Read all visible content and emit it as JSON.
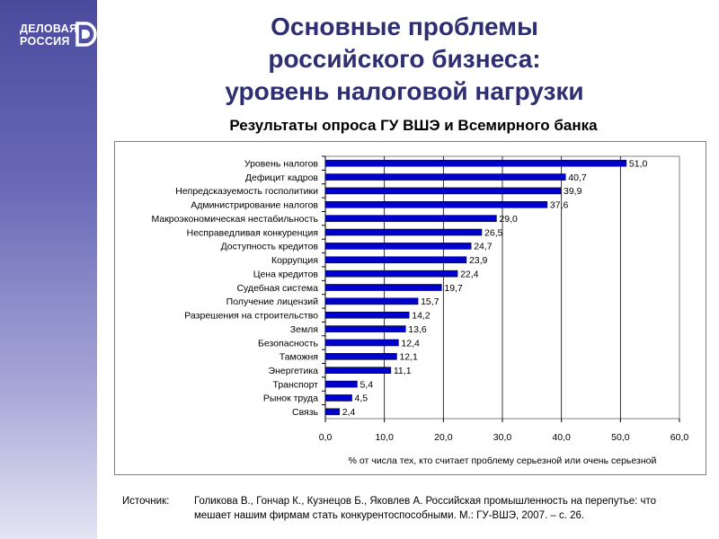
{
  "logo": {
    "line1": "ДЕЛОВАЯ",
    "line2": "РОССИЯ"
  },
  "title": {
    "line1": "Основные проблемы",
    "line2": "российского бизнеса:",
    "line3": "уровень налоговой нагрузки"
  },
  "subtitle": "Результаты опроса ГУ ВШЭ и Всемирного банка",
  "source": {
    "label": "Источник:",
    "line1": "Голикова В., Гончар К., Кузнецов Б., Яковлев А. Российская промышленность на перепутье: что",
    "line2": "мешает нашим фирмам стать конкурентоспособными. М.: ГУ-ВШЭ, 2007. – с. 26."
  },
  "colors": {
    "bar": "#0000cc",
    "title": "#2e2e72"
  },
  "chart_data": {
    "type": "bar",
    "orientation": "horizontal",
    "title": "Результаты опроса ГУ ВШЭ и Всемирного банка",
    "xlabel": "% от числа тех, кто считает проблему серьезной или очень серьезной",
    "ylabel": "",
    "xlim": [
      0,
      60
    ],
    "xticks": [
      "0,0",
      "10,0",
      "20,0",
      "30,0",
      "40,0",
      "50,0",
      "60,0"
    ],
    "grid": true,
    "categories": [
      "Уровень налогов",
      "Дефицит кадров",
      "Непредсказуемость госполитики",
      "Администрирование налогов",
      "Макроэкономическая нестабильность",
      "Несправедливая конкуренция",
      "Доступность кредитов",
      "Коррупция",
      "Цена кредитов",
      "Судебная система",
      "Получение лицензий",
      "Разрешения на строительство",
      "Земля",
      "Безопасность",
      "Таможня",
      "Энергетика",
      "Транспорт",
      "Рынок труда",
      "Связь"
    ],
    "values": [
      51.0,
      40.7,
      39.9,
      37.6,
      29.0,
      26.5,
      24.7,
      23.9,
      22.4,
      19.7,
      15.7,
      14.2,
      13.6,
      12.4,
      12.1,
      11.1,
      5.4,
      4.5,
      2.4
    ],
    "value_labels": [
      "51,0",
      "40,7",
      "39,9",
      "37,6",
      "29,0",
      "26,5",
      "24,7",
      "23,9",
      "22,4",
      "19,7",
      "15,7",
      "14,2",
      "13,6",
      "12,4",
      "12,1",
      "11,1",
      "5,4",
      "4,5",
      "2,4"
    ]
  }
}
